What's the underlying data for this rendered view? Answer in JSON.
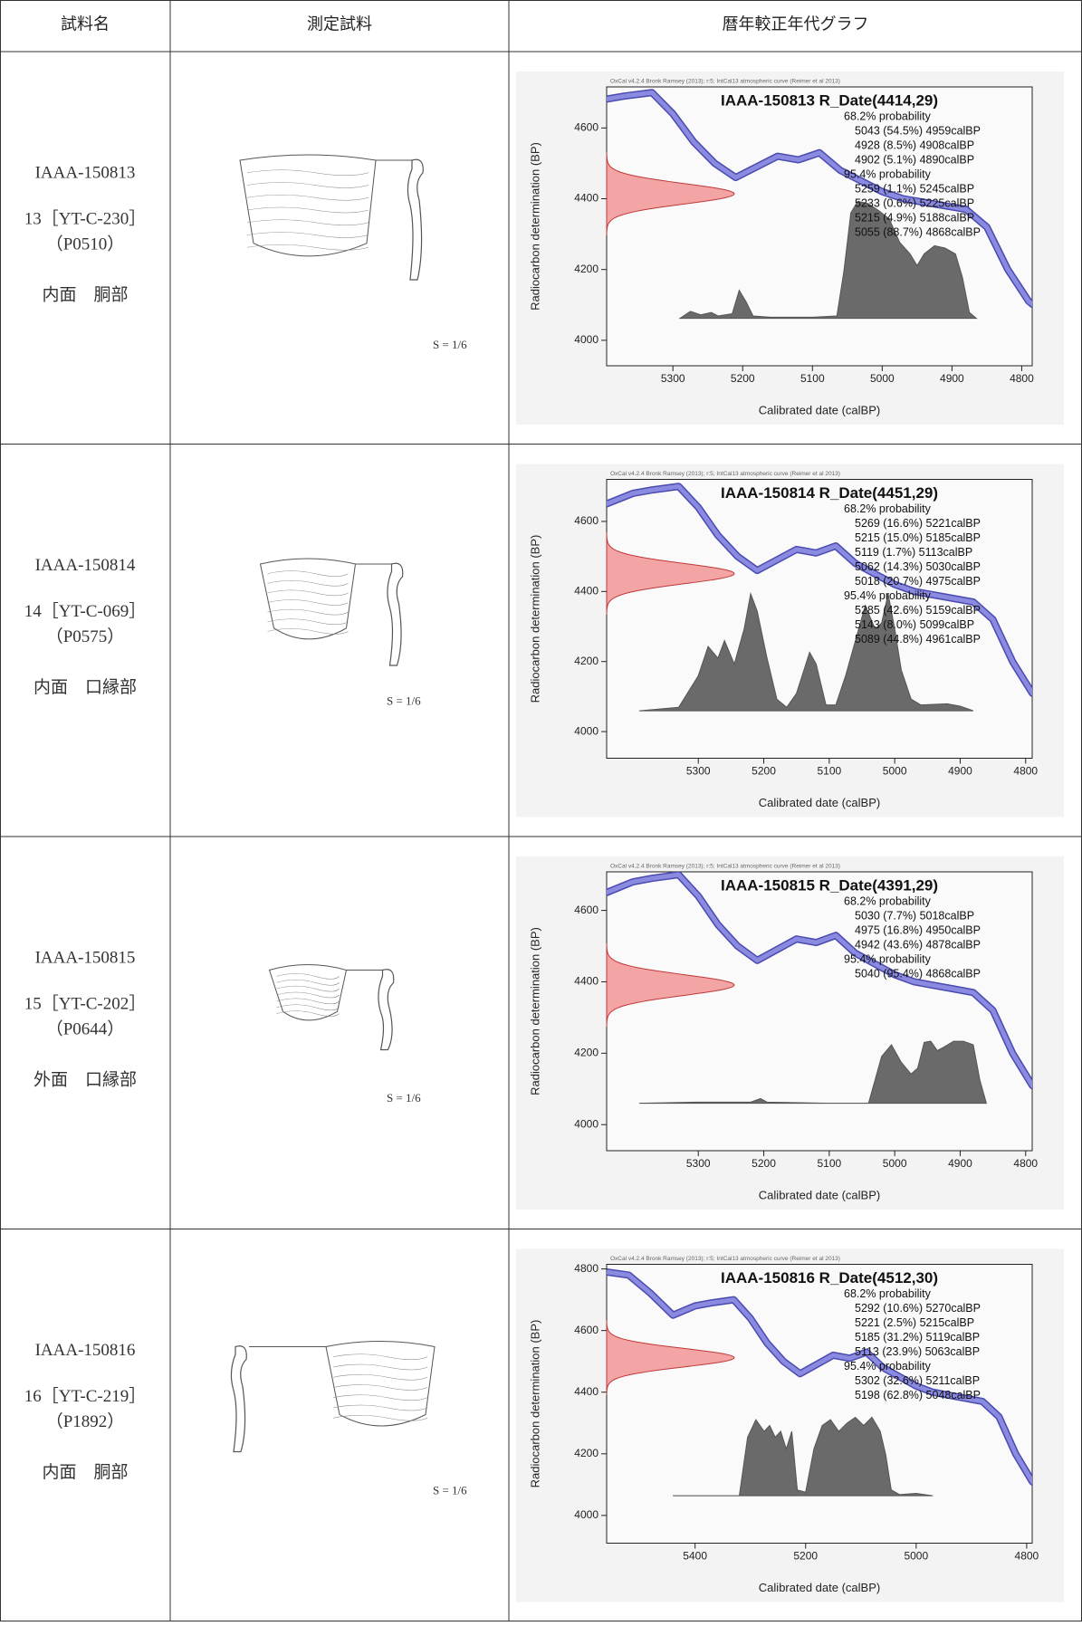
{
  "table": {
    "headers": [
      "試料名",
      "測定試料",
      "暦年較正年代グラフ"
    ],
    "rows": [
      {
        "sample_id": "IAAA-150813",
        "code": "13［YT-C-230］",
        "pcode": "（P0510）",
        "part": "内面　胴部",
        "scale": "S = 1/6",
        "chart": {
          "type": "calibration",
          "header": "OxCal v4.2.4 Bronk Ramsey (2013); r:5; IntCal13 atmospheric curve (Reimer et al 2013)",
          "title": "IAAA-150813 R_Date(4414,29)",
          "date_bp": 4414,
          "date_error": 29,
          "lines": [
            "68.2% probability",
            "5043 (54.5%) 4959calBP",
            "4928 (8.5%) 4908calBP",
            "4902 (5.1%) 4890calBP",
            "95.4% probability",
            "5259 (1.1%) 5245calBP",
            "5233 (0.6%) 5225calBP",
            "5215 (4.9%) 5188calBP",
            "5055 (88.7%) 4868calBP"
          ],
          "ylabel": "Radiocarbon determination (BP)",
          "xlabel": "Calibrated date (calBP)",
          "xlim": [
            5395,
            4785
          ],
          "ylim": [
            3928,
            4716
          ],
          "xticks": [
            5300,
            5200,
            5100,
            5000,
            4900,
            4800
          ],
          "yticks": [
            4000,
            4200,
            4400,
            4600
          ],
          "distribution": {
            "x": [
              5290,
              5275,
              5260,
              5245,
              5235,
              5215,
              5205,
              5195,
              5185,
              5160,
              5100,
              5065,
              5055,
              5045,
              5035,
              5020,
              5005,
              4990,
              4975,
              4960,
              4950,
              4940,
              4925,
              4910,
              4895,
              4885,
              4875,
              4865
            ],
            "values": [
              0,
              6,
              3,
              5,
              2,
              4,
              24,
              14,
              2,
              1,
              1,
              2,
              40,
              90,
              100,
              98,
              92,
              85,
              65,
              55,
              45,
              55,
              62,
              60,
              55,
              35,
              5,
              0
            ]
          }
        }
      },
      {
        "sample_id": "IAAA-150814",
        "code": "14［YT-C-069］",
        "pcode": "（P0575）",
        "part": "内面　口縁部",
        "scale": "S = 1/6",
        "chart": {
          "type": "calibration",
          "header": "OxCal v4.2.4 Bronk Ramsey (2013); r:5; IntCal13 atmospheric curve (Reimer et al 2013)",
          "title": "IAAA-150814 R_Date(4451,29)",
          "date_bp": 4451,
          "date_error": 29,
          "lines": [
            "68.2% probability",
            "5269 (16.6%) 5221calBP",
            "5215 (15.0%) 5185calBP",
            "5119 (1.7%) 5113calBP",
            "5062 (14.3%) 5030calBP",
            "5018 (20.7%) 4975calBP",
            "95.4% probability",
            "5285 (42.6%) 5159calBP",
            "5143 (8.0%) 5099calBP",
            "5089 (44.8%) 4961calBP"
          ],
          "ylabel": "Radiocarbon determination (BP)",
          "xlabel": "Calibrated date (calBP)",
          "xlim": [
            5440,
            4790
          ],
          "ylim": [
            3924,
            4720
          ],
          "xticks": [
            5300,
            5200,
            5100,
            5000,
            4900,
            4800
          ],
          "yticks": [
            4000,
            4200,
            4400,
            4600
          ],
          "distribution": {
            "x": [
              5390,
              5330,
              5300,
              5285,
              5270,
              5260,
              5245,
              5230,
              5220,
              5210,
              5195,
              5180,
              5165,
              5150,
              5130,
              5120,
              5105,
              5090,
              5075,
              5060,
              5045,
              5030,
              5020,
              5010,
              5000,
              4990,
              4975,
              4960,
              4920,
              4900,
              4880
            ],
            "values": [
              0,
              3,
              30,
              55,
              45,
              60,
              40,
              70,
              100,
              85,
              45,
              10,
              3,
              15,
              50,
              40,
              5,
              5,
              30,
              60,
              90,
              70,
              75,
              100,
              70,
              35,
              10,
              5,
              6,
              4,
              0
            ]
          }
        }
      },
      {
        "sample_id": "IAAA-150815",
        "code": "15［YT-C-202］",
        "pcode": "（P0644）",
        "part": "外面　口縁部",
        "scale": "S = 1/6",
        "chart": {
          "type": "calibration",
          "header": "OxCal v4.2.4 Bronk Ramsey (2013); r:5; IntCal13 atmospheric curve (Reimer et al 2013)",
          "title": "IAAA-150815 R_Date(4391,29)",
          "date_bp": 4391,
          "date_error": 29,
          "lines": [
            "68.2% probability",
            "5030 (7.7%) 5018calBP",
            "4975 (16.8%) 4950calBP",
            "4942 (43.6%) 4878calBP",
            "95.4% probability",
            "5040 (95.4%) 4868calBP"
          ],
          "ylabel": "Radiocarbon determination (BP)",
          "xlabel": "Calibrated date (calBP)",
          "xlim": [
            5440,
            4790
          ],
          "ylim": [
            3927,
            4708
          ],
          "xticks": [
            5300,
            5200,
            5100,
            5000,
            4900,
            4800
          ],
          "yticks": [
            4000,
            4200,
            4400,
            4600
          ],
          "distribution": {
            "x": [
              5390,
              5300,
              5220,
              5205,
              5195,
              5100,
              5040,
              5030,
              5020,
              5005,
              4990,
              4975,
              4965,
              4955,
              4945,
              4935,
              4925,
              4910,
              4895,
              4880,
              4870,
              4860
            ],
            "values": [
              0,
              1,
              1,
              4,
              1,
              0,
              0,
              20,
              40,
              50,
              35,
              25,
              30,
              52,
              53,
              45,
              48,
              53,
              53,
              50,
              20,
              0
            ]
          }
        }
      },
      {
        "sample_id": "IAAA-150816",
        "code": "16［YT-C-219］",
        "pcode": "（P1892）",
        "part": "内面　胴部",
        "scale": "S = 1/6",
        "chart": {
          "type": "calibration",
          "header": "OxCal v4.2.4 Bronk Ramsey (2013); r:5; IntCal13 atmospheric curve (Reimer et al 2013)",
          "title": "IAAA-150816 R_Date(4512,30)",
          "date_bp": 4512,
          "date_error": 30,
          "lines": [
            "68.2% probability",
            "5292 (10.6%) 5270calBP",
            "5221 (2.5%) 5215calBP",
            "5185 (31.2%) 5119calBP",
            "5113 (23.9%) 5063calBP",
            "95.4% probability",
            "5302 (32.6%) 5211calBP",
            "5198 (62.8%) 5048calBP"
          ],
          "ylabel": "Radiocarbon determination (BP)",
          "xlabel": "Calibrated date (calBP)",
          "xlim": [
            5560,
            4790
          ],
          "ylim": [
            3910,
            4815
          ],
          "xticks": [
            5400,
            5200,
            5000,
            4800
          ],
          "yticks": [
            4000,
            4200,
            4400,
            4600,
            4800
          ],
          "distribution": {
            "x": [
              5440,
              5320,
              5305,
              5290,
              5275,
              5265,
              5255,
              5245,
              5235,
              5225,
              5215,
              5200,
              5185,
              5170,
              5155,
              5140,
              5125,
              5110,
              5095,
              5080,
              5065,
              5055,
              5045,
              5030,
              5000,
              4970
            ],
            "values": [
              0,
              0,
              50,
              65,
              55,
              60,
              50,
              55,
              40,
              55,
              5,
              3,
              40,
              60,
              65,
              55,
              62,
              67,
              60,
              67,
              55,
              35,
              5,
              1,
              2,
              0
            ]
          }
        }
      }
    ]
  },
  "calibration_curve": {
    "x": [
      5560,
      5520,
      5480,
      5440,
      5400,
      5370,
      5330,
      5300,
      5270,
      5240,
      5210,
      5180,
      5150,
      5120,
      5090,
      5060,
      5030,
      5000,
      4970,
      4940,
      4910,
      4880,
      4850,
      4820,
      4790,
      4770
    ],
    "y": [
      4790,
      4780,
      4720,
      4650,
      4680,
      4690,
      4700,
      4640,
      4560,
      4500,
      4460,
      4490,
      4520,
      4510,
      4530,
      4480,
      4450,
      4420,
      4400,
      4390,
      4380,
      4370,
      4320,
      4200,
      4110,
      4080
    ]
  }
}
